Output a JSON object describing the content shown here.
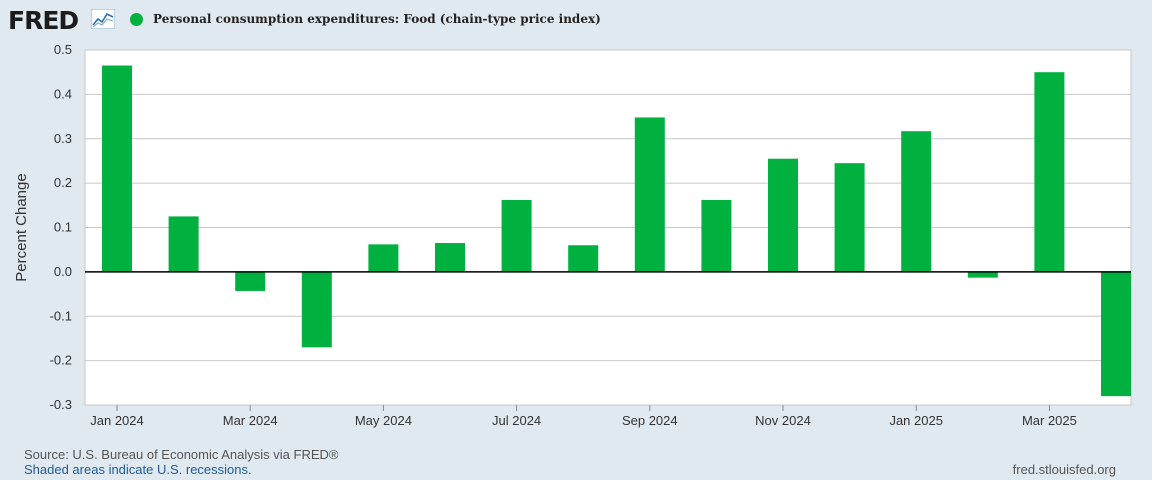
{
  "header": {
    "logo_text": "FRED",
    "logo_icon": "chart-line-icon",
    "legend_label": "Personal consumption expenditures: Food (chain-type price index)",
    "legend_color": "#00b140"
  },
  "footer": {
    "source": "Source: U.S. Bureau of Economic Analysis via FRED®",
    "recession_note": "Shaded areas indicate U.S. recessions.",
    "url": "fred.stlouisfed.org"
  },
  "chart_data": {
    "type": "bar",
    "title": "",
    "ylabel": "Percent Change",
    "xlabel": "",
    "ylim": [
      -0.3,
      0.5
    ],
    "y_ticks": [
      "0.5",
      "0.4",
      "0.3",
      "0.2",
      "0.1",
      "0.0",
      "-0.1",
      "-0.2",
      "-0.3"
    ],
    "y_tick_values": [
      0.5,
      0.4,
      0.3,
      0.2,
      0.1,
      0.0,
      -0.1,
      -0.2,
      -0.3
    ],
    "categories": [
      "Jan 2024",
      "Feb 2024",
      "Mar 2024",
      "Apr 2024",
      "May 2024",
      "Jun 2024",
      "Jul 2024",
      "Aug 2024",
      "Sep 2024",
      "Oct 2024",
      "Nov 2024",
      "Dec 2024",
      "Jan 2025",
      "Feb 2025",
      "Mar 2025",
      "Apr 2025"
    ],
    "x_tick_labels": [
      "Jan 2024",
      "Mar 2024",
      "May 2024",
      "Jul 2024",
      "Sep 2024",
      "Nov 2024",
      "Jan 2025",
      "Mar 2025"
    ],
    "series": [
      {
        "name": "Personal consumption expenditures: Food (chain-type price index)",
        "color": "#00b140",
        "values": [
          0.465,
          0.125,
          -0.043,
          -0.17,
          0.062,
          0.065,
          0.162,
          0.06,
          0.348,
          0.162,
          0.255,
          0.245,
          0.317,
          -0.013,
          0.45,
          -0.28
        ]
      }
    ],
    "grid": true,
    "legend_position": "top-left"
  }
}
